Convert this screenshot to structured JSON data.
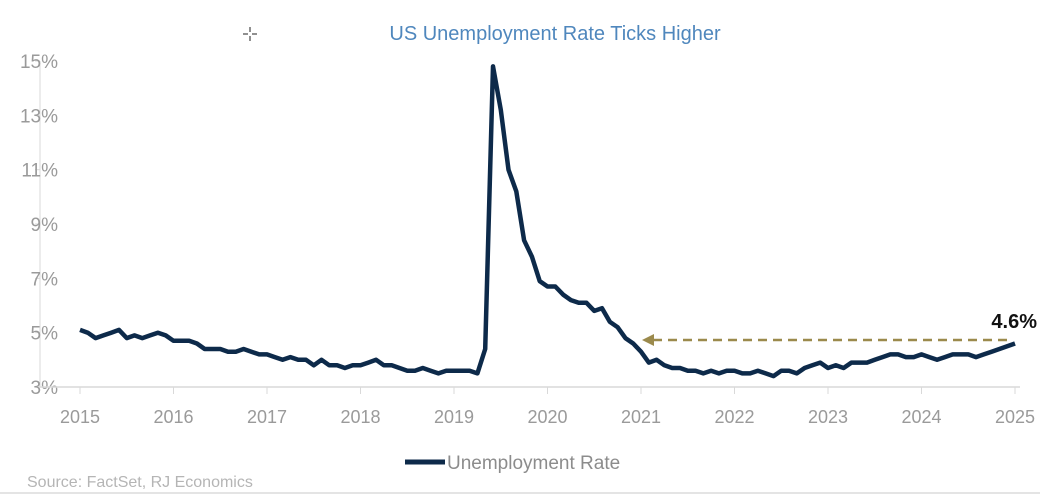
{
  "chart_data": {
    "type": "line",
    "title": "US Unemployment Rate Ticks Higher",
    "xlabel": "",
    "ylabel": "",
    "xlim": [
      2015,
      2025
    ],
    "ylim": [
      3,
      15
    ],
    "x_ticks": [
      "2015",
      "2016",
      "2017",
      "2018",
      "2019",
      "2020",
      "2021",
      "2022",
      "2023",
      "2024",
      "2025"
    ],
    "y_ticks": [
      "3%",
      "5%",
      "7%",
      "9%",
      "11%",
      "13%",
      "15%"
    ],
    "grid": false,
    "legend_position": "bottom",
    "series": [
      {
        "name": "Unemployment Rate",
        "color": "#0d2a4a",
        "x_frequency": "monthly",
        "values": [
          5.1,
          5.0,
          4.8,
          4.9,
          5.0,
          5.1,
          4.8,
          4.9,
          4.8,
          4.9,
          5.0,
          4.9,
          4.7,
          4.7,
          4.7,
          4.6,
          4.4,
          4.4,
          4.4,
          4.3,
          4.3,
          4.4,
          4.3,
          4.2,
          4.2,
          4.1,
          4.0,
          4.1,
          4.0,
          4.0,
          3.8,
          4.0,
          3.8,
          3.8,
          3.7,
          3.8,
          3.8,
          3.9,
          4.0,
          3.8,
          3.8,
          3.7,
          3.6,
          3.6,
          3.7,
          3.6,
          3.5,
          3.6,
          3.6,
          3.6,
          3.6,
          3.5,
          4.4,
          14.8,
          13.2,
          11.0,
          10.2,
          8.4,
          7.8,
          6.9,
          6.7,
          6.7,
          6.4,
          6.2,
          6.1,
          6.1,
          5.8,
          5.9,
          5.4,
          5.2,
          4.8,
          4.6,
          4.3,
          3.9,
          4.0,
          3.8,
          3.7,
          3.7,
          3.6,
          3.6,
          3.5,
          3.6,
          3.5,
          3.6,
          3.6,
          3.5,
          3.5,
          3.6,
          3.5,
          3.4,
          3.6,
          3.6,
          3.5,
          3.7,
          3.8,
          3.9,
          3.7,
          3.8,
          3.7,
          3.9,
          3.9,
          3.9,
          4.0,
          4.1,
          4.2,
          4.2,
          4.1,
          4.1,
          4.2,
          4.1,
          4.0,
          4.1,
          4.2,
          4.2,
          4.2,
          4.1,
          4.2,
          4.3,
          4.4,
          4.5,
          4.6
        ]
      }
    ],
    "annotations": [
      {
        "text": "4.6%",
        "type": "dashed-arrow",
        "y": 4.6,
        "x_from": 2025,
        "x_to": 2021,
        "color": "#9b8a4c"
      }
    ],
    "source": "Source: FactSet, RJ Economics"
  }
}
